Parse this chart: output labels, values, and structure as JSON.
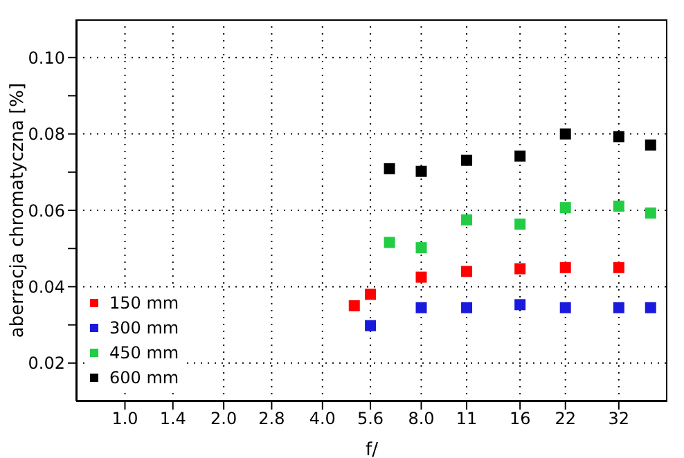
{
  "chart_data": {
    "type": "scatter",
    "xlabel": "f/",
    "ylabel": "aberracja chromatyczna [%]",
    "log": "x",
    "grid": true,
    "legend": "bottom left",
    "marker": "square",
    "xlim": [
      0.71,
      45
    ],
    "ylim": [
      0.01,
      0.11
    ],
    "xticks": [
      {
        "value": 1,
        "label": "1.0"
      },
      1.4,
      {
        "value": 2,
        "label": "2.0"
      },
      2.8,
      {
        "value": 4,
        "label": "4.0"
      },
      5.6,
      {
        "value": 8,
        "label": "8.0"
      },
      11,
      16,
      22,
      32
    ],
    "yticks": [
      0.02,
      {
        "value": 0.03,
        "label": null
      },
      0.04,
      {
        "value": 0.05,
        "label": null
      },
      0.06,
      {
        "value": 0.07,
        "label": null
      },
      0.08,
      {
        "value": 0.09,
        "label": null
      },
      {
        "value": 0.1,
        "label": "0.10"
      }
    ],
    "series": [
      {
        "name": "150 mm",
        "color": "#ff0000",
        "x": [
          5.0,
          5.6,
          8,
          11,
          16,
          22,
          32
        ],
        "values": [
          0.035,
          0.038,
          0.0425,
          0.044,
          0.0447,
          0.045,
          0.045
        ]
      },
      {
        "name": "300 mm",
        "color": "#1a1adc",
        "x": [
          5.6,
          8,
          11,
          16,
          22,
          32,
          40
        ],
        "values": [
          0.0298,
          0.0345,
          0.0345,
          0.0353,
          0.0345,
          0.0345,
          0.0345
        ]
      },
      {
        "name": "450 mm",
        "color": "#22cc44",
        "x": [
          6.4,
          8,
          11,
          16,
          22,
          32,
          40
        ],
        "values": [
          0.0516,
          0.0502,
          0.0575,
          0.0564,
          0.0607,
          0.0611,
          0.0593
        ]
      },
      {
        "name": "600 mm",
        "color": "#000000",
        "x": [
          6.4,
          8,
          11,
          16,
          22,
          32,
          40
        ],
        "values": [
          0.0709,
          0.0702,
          0.0731,
          0.0742,
          0.08,
          0.0793,
          0.0771
        ]
      }
    ]
  }
}
